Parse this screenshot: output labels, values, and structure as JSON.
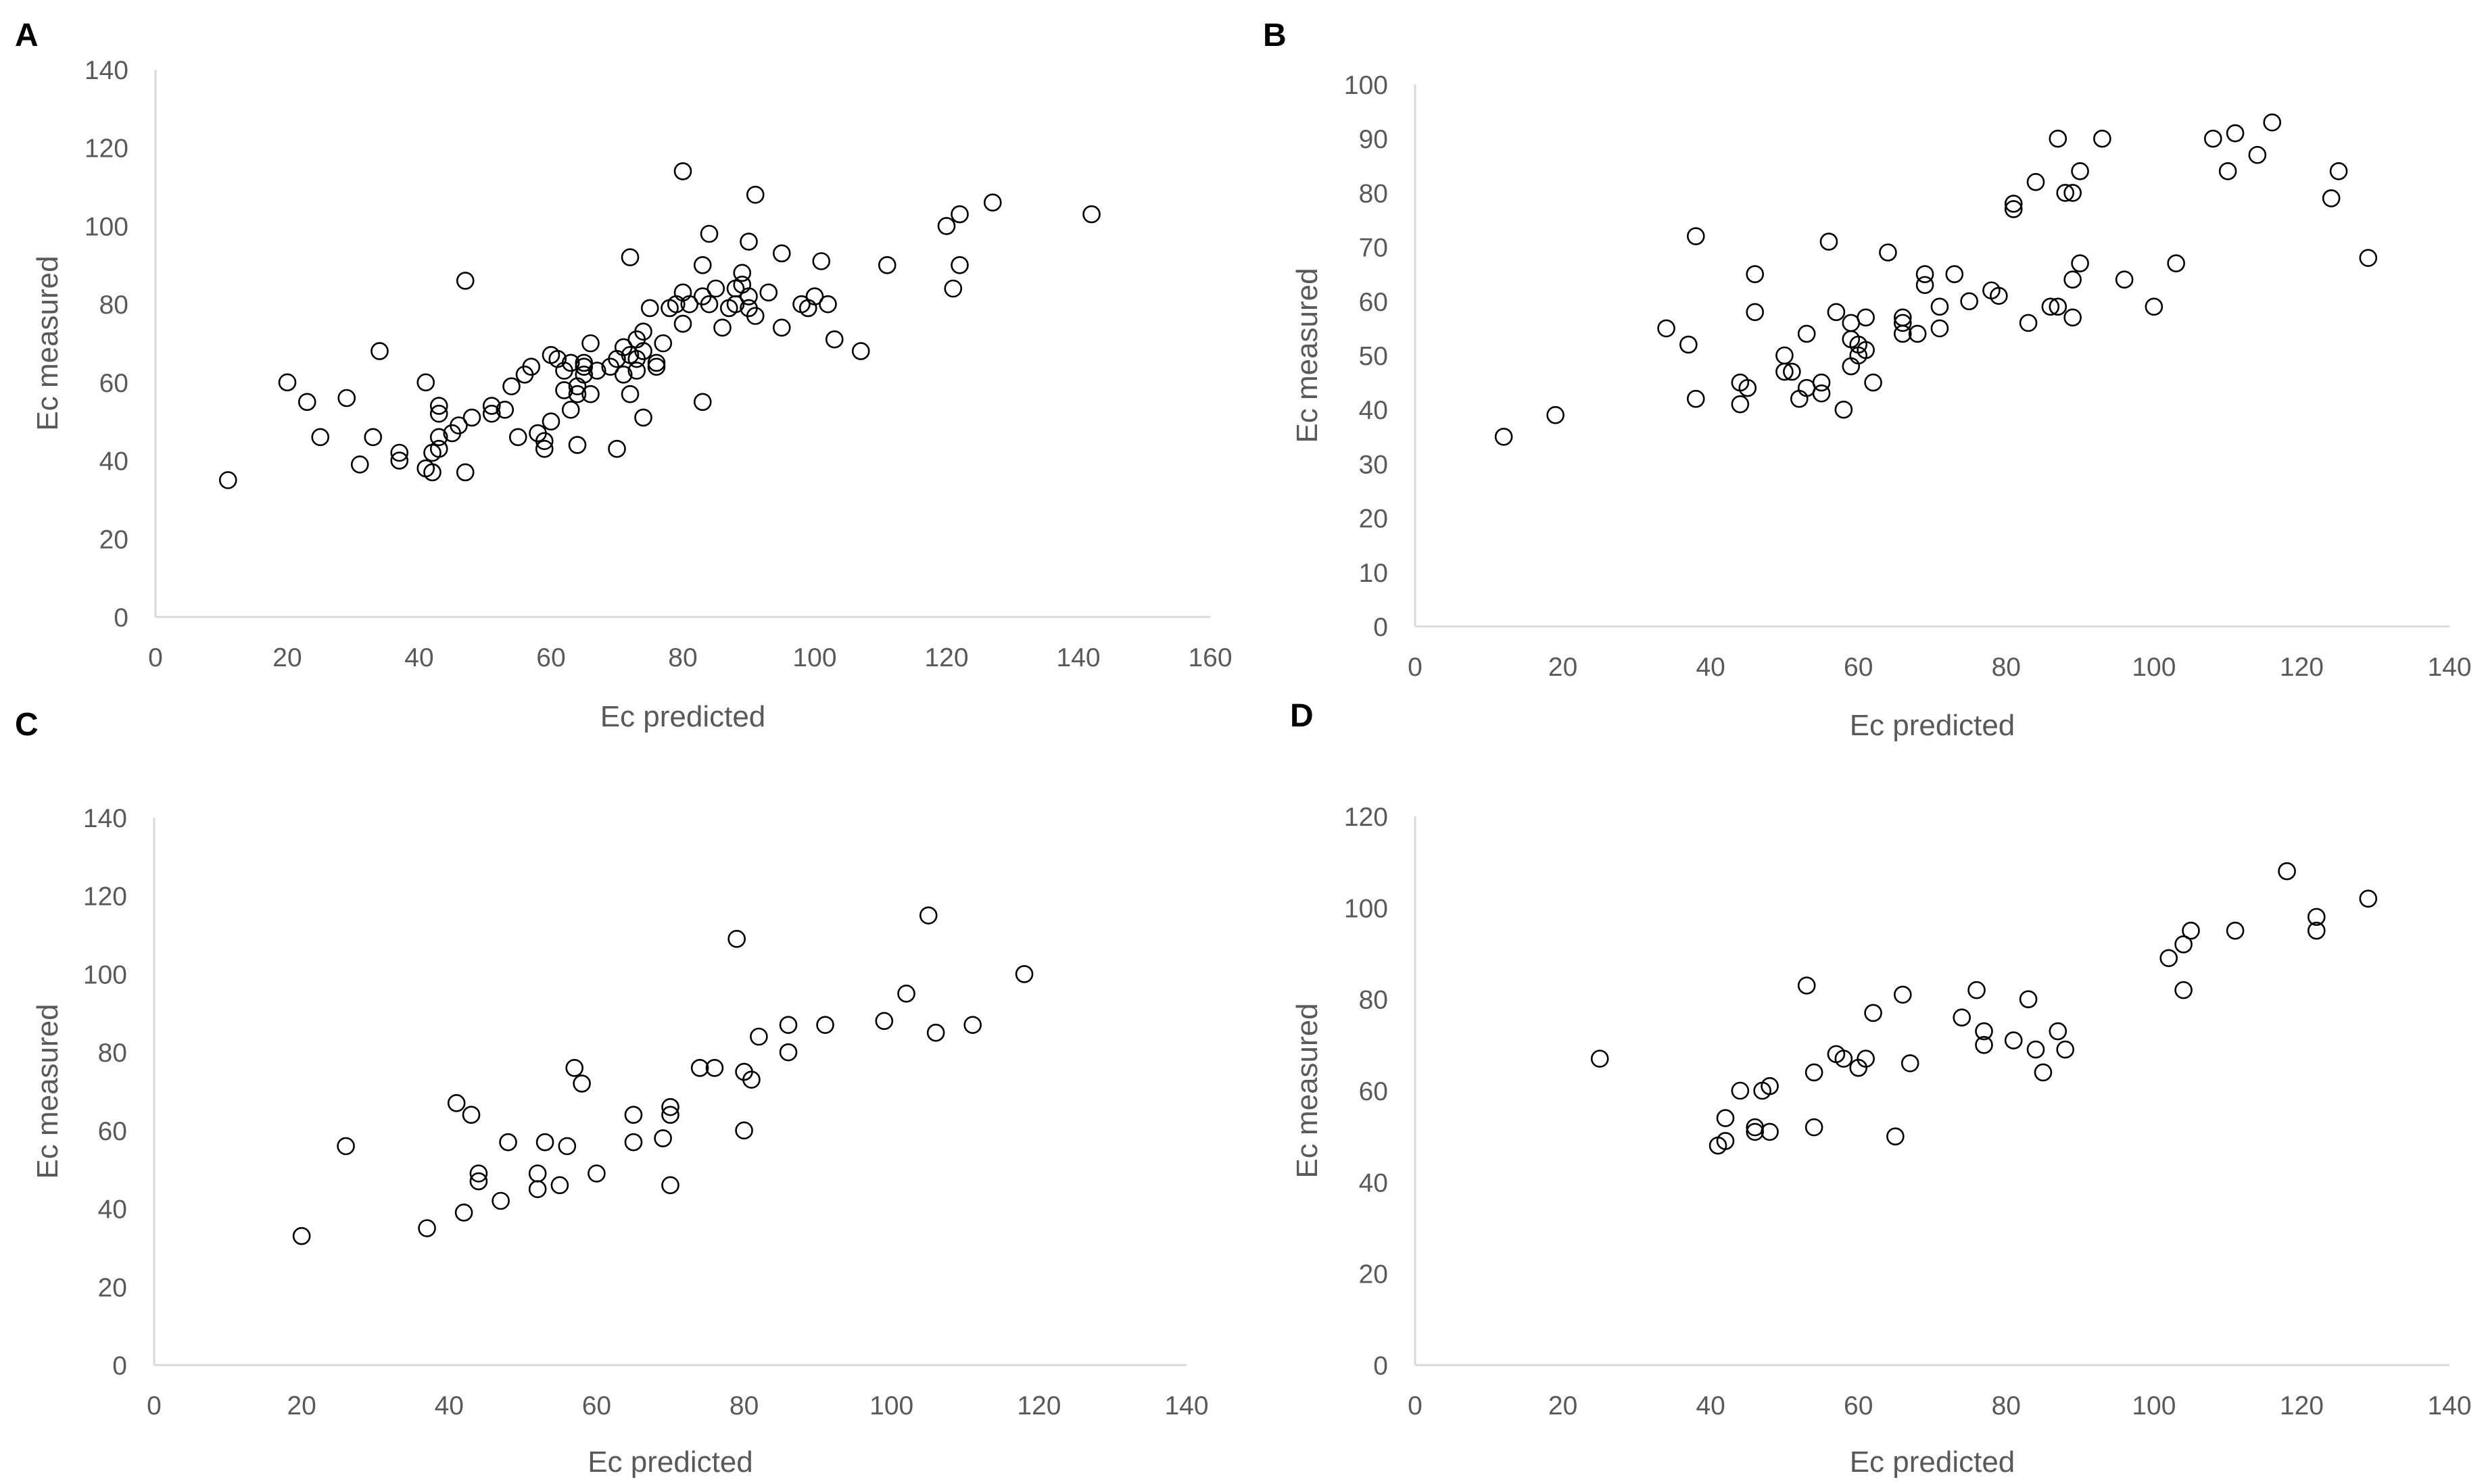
{
  "chart_data": [
    {
      "panel": "A",
      "type": "scatter",
      "title": "",
      "xlabel": "Ec predicted",
      "ylabel": "Ec measured",
      "xlim": [
        0,
        160
      ],
      "ylim": [
        0,
        140
      ],
      "xticks": [
        0,
        20,
        40,
        60,
        80,
        100,
        120,
        140,
        160
      ],
      "yticks": [
        0,
        20,
        40,
        60,
        80,
        100,
        120,
        140
      ],
      "grid": false,
      "legend": "none",
      "marker": "open-circle",
      "points": [
        [
          11,
          35
        ],
        [
          20,
          60
        ],
        [
          23,
          55
        ],
        [
          25,
          46
        ],
        [
          29,
          56
        ],
        [
          31,
          39
        ],
        [
          33,
          46
        ],
        [
          34,
          68
        ],
        [
          37,
          42
        ],
        [
          37,
          40
        ],
        [
          41,
          60
        ],
        [
          41,
          38
        ],
        [
          42,
          42
        ],
        [
          42,
          37
        ],
        [
          43,
          46
        ],
        [
          43,
          43
        ],
        [
          43,
          54
        ],
        [
          43,
          52
        ],
        [
          45,
          47
        ],
        [
          46,
          49
        ],
        [
          47,
          37
        ],
        [
          47,
          86
        ],
        [
          48,
          51
        ],
        [
          51,
          54
        ],
        [
          51,
          52
        ],
        [
          53,
          53
        ],
        [
          54,
          59
        ],
        [
          55,
          46
        ],
        [
          56,
          62
        ],
        [
          57,
          64
        ],
        [
          58,
          47
        ],
        [
          59,
          45
        ],
        [
          59,
          43
        ],
        [
          60,
          50
        ],
        [
          60,
          67
        ],
        [
          61,
          66
        ],
        [
          62,
          63
        ],
        [
          62,
          58
        ],
        [
          63,
          53
        ],
        [
          63,
          65
        ],
        [
          64,
          44
        ],
        [
          64,
          57
        ],
        [
          64,
          59
        ],
        [
          65,
          65
        ],
        [
          65,
          64
        ],
        [
          65,
          62
        ],
        [
          66,
          70
        ],
        [
          66,
          57
        ],
        [
          67,
          63
        ],
        [
          69,
          64
        ],
        [
          70,
          43
        ],
        [
          70,
          66
        ],
        [
          71,
          62
        ],
        [
          71,
          69
        ],
        [
          72,
          67
        ],
        [
          72,
          92
        ],
        [
          72,
          57
        ],
        [
          73,
          71
        ],
        [
          73,
          63
        ],
        [
          73,
          66
        ],
        [
          74,
          51
        ],
        [
          74,
          68
        ],
        [
          74,
          73
        ],
        [
          75,
          79
        ],
        [
          76,
          65
        ],
        [
          76,
          64
        ],
        [
          77,
          70
        ],
        [
          78,
          79
        ],
        [
          79,
          80
        ],
        [
          80,
          75
        ],
        [
          80,
          83
        ],
        [
          80,
          114
        ],
        [
          81,
          80
        ],
        [
          83,
          55
        ],
        [
          83,
          82
        ],
        [
          83,
          90
        ],
        [
          84,
          80
        ],
        [
          84,
          98
        ],
        [
          85,
          84
        ],
        [
          86,
          74
        ],
        [
          87,
          79
        ],
        [
          88,
          84
        ],
        [
          88,
          80
        ],
        [
          89,
          88
        ],
        [
          89,
          85
        ],
        [
          90,
          82
        ],
        [
          90,
          96
        ],
        [
          90,
          79
        ],
        [
          91,
          77
        ],
        [
          91,
          108
        ],
        [
          93,
          83
        ],
        [
          95,
          93
        ],
        [
          95,
          74
        ],
        [
          98,
          80
        ],
        [
          99,
          79
        ],
        [
          100,
          82
        ],
        [
          101,
          91
        ],
        [
          102,
          80
        ],
        [
          103,
          71
        ],
        [
          107,
          68
        ],
        [
          111,
          90
        ],
        [
          120,
          100
        ],
        [
          121,
          84
        ],
        [
          122,
          103
        ],
        [
          122,
          90
        ],
        [
          127,
          106
        ],
        [
          142,
          103
        ]
      ]
    },
    {
      "panel": "B",
      "type": "scatter",
      "title": "",
      "xlabel": "Ec predicted",
      "ylabel": "Ec measured",
      "xlim": [
        0,
        140
      ],
      "ylim": [
        0,
        100
      ],
      "xticks": [
        0,
        20,
        40,
        60,
        80,
        100,
        120,
        140
      ],
      "yticks": [
        0,
        10,
        20,
        30,
        40,
        50,
        60,
        70,
        80,
        90,
        100
      ],
      "grid": false,
      "legend": "none",
      "marker": "open-circle",
      "points": [
        [
          12,
          35
        ],
        [
          19,
          39
        ],
        [
          34,
          55
        ],
        [
          37,
          52
        ],
        [
          38,
          72
        ],
        [
          38,
          42
        ],
        [
          44,
          45
        ],
        [
          44,
          41
        ],
        [
          45,
          44
        ],
        [
          46,
          65
        ],
        [
          46,
          58
        ],
        [
          50,
          50
        ],
        [
          50,
          47
        ],
        [
          51,
          47
        ],
        [
          52,
          42
        ],
        [
          53,
          54
        ],
        [
          53,
          44
        ],
        [
          55,
          43
        ],
        [
          55,
          45
        ],
        [
          56,
          71
        ],
        [
          57,
          58
        ],
        [
          58,
          40
        ],
        [
          59,
          48
        ],
        [
          59,
          53
        ],
        [
          59,
          56
        ],
        [
          60,
          52
        ],
        [
          60,
          50
        ],
        [
          61,
          57
        ],
        [
          61,
          51
        ],
        [
          62,
          45
        ],
        [
          64,
          69
        ],
        [
          66,
          54
        ],
        [
          66,
          57
        ],
        [
          66,
          56
        ],
        [
          68,
          54
        ],
        [
          69,
          63
        ],
        [
          69,
          65
        ],
        [
          71,
          55
        ],
        [
          71,
          59
        ],
        [
          73,
          65
        ],
        [
          75,
          60
        ],
        [
          78,
          62
        ],
        [
          79,
          61
        ],
        [
          81,
          78
        ],
        [
          81,
          77
        ],
        [
          83,
          56
        ],
        [
          84,
          82
        ],
        [
          86,
          59
        ],
        [
          87,
          90
        ],
        [
          87,
          59
        ],
        [
          88,
          80
        ],
        [
          89,
          80
        ],
        [
          89,
          57
        ],
        [
          89,
          64
        ],
        [
          90,
          67
        ],
        [
          90,
          84
        ],
        [
          93,
          90
        ],
        [
          96,
          64
        ],
        [
          100,
          59
        ],
        [
          103,
          67
        ],
        [
          108,
          90
        ],
        [
          110,
          84
        ],
        [
          111,
          91
        ],
        [
          114,
          87
        ],
        [
          116,
          93
        ],
        [
          124,
          79
        ],
        [
          125,
          84
        ],
        [
          129,
          68
        ]
      ]
    },
    {
      "panel": "C",
      "type": "scatter",
      "title": "",
      "xlabel": "Ec predicted",
      "ylabel": "Ec measured",
      "xlim": [
        0,
        140
      ],
      "ylim": [
        0,
        140
      ],
      "xticks": [
        0,
        20,
        40,
        60,
        80,
        100,
        120,
        140
      ],
      "yticks": [
        0,
        20,
        40,
        60,
        80,
        100,
        120,
        140
      ],
      "grid": false,
      "legend": "none",
      "marker": "open-circle",
      "points": [
        [
          20,
          33
        ],
        [
          26,
          56
        ],
        [
          37,
          35
        ],
        [
          41,
          67
        ],
        [
          42,
          39
        ],
        [
          43,
          64
        ],
        [
          44,
          49
        ],
        [
          44,
          47
        ],
        [
          47,
          42
        ],
        [
          48,
          57
        ],
        [
          52,
          49
        ],
        [
          52,
          45
        ],
        [
          53,
          57
        ],
        [
          55,
          46
        ],
        [
          56,
          56
        ],
        [
          57,
          76
        ],
        [
          58,
          72
        ],
        [
          60,
          49
        ],
        [
          65,
          64
        ],
        [
          65,
          57
        ],
        [
          69,
          58
        ],
        [
          70,
          66
        ],
        [
          70,
          64
        ],
        [
          70,
          46
        ],
        [
          74,
          76
        ],
        [
          76,
          76
        ],
        [
          79,
          109
        ],
        [
          80,
          60
        ],
        [
          80,
          75
        ],
        [
          81,
          73
        ],
        [
          82,
          84
        ],
        [
          86,
          87
        ],
        [
          86,
          80
        ],
        [
          91,
          87
        ],
        [
          99,
          88
        ],
        [
          102,
          95
        ],
        [
          105,
          115
        ],
        [
          106,
          85
        ],
        [
          111,
          87
        ],
        [
          118,
          100
        ]
      ]
    },
    {
      "panel": "D",
      "type": "scatter",
      "title": "",
      "xlabel": "Ec predicted",
      "ylabel": "Ec measured",
      "xlim": [
        0,
        140
      ],
      "ylim": [
        0,
        120
      ],
      "xticks": [
        0,
        20,
        40,
        60,
        80,
        100,
        120,
        140
      ],
      "yticks": [
        0,
        20,
        40,
        60,
        80,
        100,
        120
      ],
      "grid": false,
      "legend": "none",
      "marker": "open-circle",
      "points": [
        [
          25,
          67
        ],
        [
          41,
          48
        ],
        [
          42,
          49
        ],
        [
          42,
          54
        ],
        [
          44,
          60
        ],
        [
          46,
          52
        ],
        [
          46,
          51
        ],
        [
          47,
          60
        ],
        [
          48,
          61
        ],
        [
          48,
          51
        ],
        [
          53,
          83
        ],
        [
          54,
          52
        ],
        [
          54,
          64
        ],
        [
          57,
          68
        ],
        [
          58,
          67
        ],
        [
          60,
          65
        ],
        [
          61,
          67
        ],
        [
          62,
          77
        ],
        [
          65,
          50
        ],
        [
          66,
          81
        ],
        [
          67,
          66
        ],
        [
          74,
          76
        ],
        [
          76,
          82
        ],
        [
          77,
          70
        ],
        [
          77,
          73
        ],
        [
          81,
          71
        ],
        [
          83,
          80
        ],
        [
          84,
          69
        ],
        [
          85,
          64
        ],
        [
          87,
          73
        ],
        [
          88,
          69
        ],
        [
          102,
          89
        ],
        [
          104,
          82
        ],
        [
          104,
          92
        ],
        [
          105,
          95
        ],
        [
          111,
          95
        ],
        [
          118,
          108
        ],
        [
          122,
          98
        ],
        [
          122,
          95
        ],
        [
          129,
          102
        ]
      ]
    }
  ]
}
